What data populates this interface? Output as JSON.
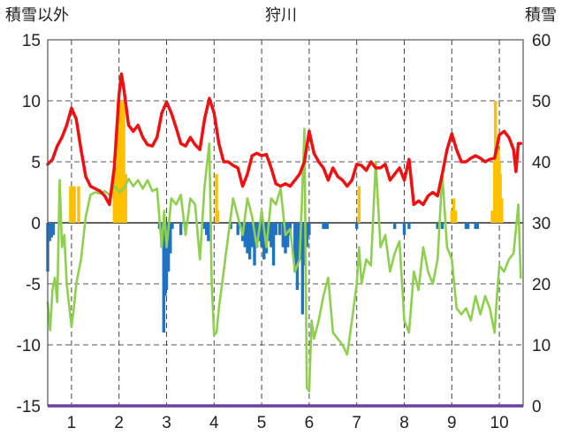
{
  "chart_data": {
    "type": "bar+line",
    "title": "狩川",
    "left_axis_label": "積雪以外",
    "right_axis_label": "積雪",
    "left_ylim": [
      -15,
      15
    ],
    "right_ylim": [
      0,
      60
    ],
    "left_ticks": [
      "15",
      "10",
      "5",
      "0",
      "-5",
      "-10",
      "-15"
    ],
    "right_ticks": [
      "60",
      "50",
      "40",
      "30",
      "20",
      "10",
      "0"
    ],
    "x_categories": [
      "1",
      "2",
      "3",
      "4",
      "5",
      "6",
      "7",
      "8",
      "9",
      "10"
    ],
    "grid": "dashed",
    "colors": {
      "red_line": "#ee1111",
      "green_line": "#8fcf4f",
      "orange_bars": "#ffc000",
      "blue_bars": "#1f73c0",
      "base_line": "#6e3fa0"
    },
    "series": [
      {
        "color_key": "red_line",
        "axis": "left",
        "points": [
          [
            0.5,
            4.8
          ],
          [
            0.6,
            5.2
          ],
          [
            0.7,
            6.3
          ],
          [
            0.8,
            7.0
          ],
          [
            0.9,
            8.0
          ],
          [
            1.0,
            9.4
          ],
          [
            1.1,
            8.5
          ],
          [
            1.2,
            6.0
          ],
          [
            1.3,
            3.8
          ],
          [
            1.4,
            3.0
          ],
          [
            1.5,
            2.8
          ],
          [
            1.6,
            2.6
          ],
          [
            1.7,
            2.2
          ],
          [
            1.8,
            1.5
          ],
          [
            1.9,
            4.5
          ],
          [
            2.0,
            10.5
          ],
          [
            2.05,
            12.2
          ],
          [
            2.1,
            11.0
          ],
          [
            2.2,
            8.0
          ],
          [
            2.3,
            7.5
          ],
          [
            2.4,
            8.0
          ],
          [
            2.5,
            7.0
          ],
          [
            2.6,
            6.4
          ],
          [
            2.7,
            6.3
          ],
          [
            2.8,
            7.0
          ],
          [
            2.9,
            9.0
          ],
          [
            3.0,
            9.9
          ],
          [
            3.1,
            9.0
          ],
          [
            3.2,
            7.8
          ],
          [
            3.3,
            6.5
          ],
          [
            3.4,
            6.3
          ],
          [
            3.5,
            7.0
          ],
          [
            3.6,
            6.4
          ],
          [
            3.7,
            6.0
          ],
          [
            3.8,
            8.5
          ],
          [
            3.9,
            10.2
          ],
          [
            4.0,
            9.0
          ],
          [
            4.1,
            6.5
          ],
          [
            4.2,
            5.0
          ],
          [
            4.3,
            5.0
          ],
          [
            4.4,
            4.7
          ],
          [
            4.5,
            4.5
          ],
          [
            4.6,
            3.0
          ],
          [
            4.7,
            4.0
          ],
          [
            4.8,
            5.5
          ],
          [
            4.9,
            5.7
          ],
          [
            5.0,
            5.5
          ],
          [
            5.1,
            5.6
          ],
          [
            5.2,
            4.5
          ],
          [
            5.3,
            3.2
          ],
          [
            5.4,
            3.0
          ],
          [
            5.5,
            3.2
          ],
          [
            5.6,
            3.0
          ],
          [
            5.7,
            3.5
          ],
          [
            5.8,
            4.0
          ],
          [
            5.9,
            5.0
          ],
          [
            6.0,
            7.5
          ],
          [
            6.1,
            5.7
          ],
          [
            6.2,
            5.0
          ],
          [
            6.3,
            4.5
          ],
          [
            6.4,
            3.5
          ],
          [
            6.5,
            4.5
          ],
          [
            6.6,
            3.8
          ],
          [
            6.7,
            3.5
          ],
          [
            6.8,
            3.0
          ],
          [
            6.9,
            3.5
          ],
          [
            7.0,
            4.8
          ],
          [
            7.1,
            4.7
          ],
          [
            7.2,
            4.3
          ],
          [
            7.3,
            5.0
          ],
          [
            7.4,
            4.5
          ],
          [
            7.5,
            4.5
          ],
          [
            7.6,
            4.8
          ],
          [
            7.7,
            3.5
          ],
          [
            7.8,
            4.0
          ],
          [
            7.9,
            4.5
          ],
          [
            8.0,
            3.5
          ],
          [
            8.1,
            5.2
          ],
          [
            8.2,
            1.5
          ],
          [
            8.3,
            1.8
          ],
          [
            8.4,
            1.5
          ],
          [
            8.5,
            2.2
          ],
          [
            8.6,
            2.5
          ],
          [
            8.7,
            2.2
          ],
          [
            8.8,
            4.0
          ],
          [
            8.9,
            6.0
          ],
          [
            9.0,
            7.3
          ],
          [
            9.1,
            6.0
          ],
          [
            9.2,
            5.0
          ],
          [
            9.3,
            5.0
          ],
          [
            9.4,
            5.3
          ],
          [
            9.5,
            5.5
          ],
          [
            9.6,
            5.3
          ],
          [
            9.7,
            5.0
          ],
          [
            9.8,
            5.2
          ],
          [
            9.9,
            5.3
          ],
          [
            10.0,
            7.2
          ],
          [
            10.1,
            7.5
          ],
          [
            10.2,
            7.0
          ],
          [
            10.3,
            6.0
          ],
          [
            10.35,
            4.2
          ],
          [
            10.4,
            6.5
          ],
          [
            10.45,
            6.5
          ]
        ]
      },
      {
        "color_key": "green_line",
        "axis": "left",
        "points": [
          [
            0.5,
            -6.5
          ],
          [
            0.55,
            -8.8
          ],
          [
            0.6,
            -5.5
          ],
          [
            0.65,
            -4.5
          ],
          [
            0.7,
            -6.5
          ],
          [
            0.75,
            3.5
          ],
          [
            0.8,
            -2.0
          ],
          [
            0.85,
            -1.0
          ],
          [
            0.9,
            -5.0
          ],
          [
            1.0,
            -8.5
          ],
          [
            1.05,
            -7.0
          ],
          [
            1.1,
            -5.0
          ],
          [
            1.2,
            -3.0
          ],
          [
            1.3,
            0.5
          ],
          [
            1.4,
            2.3
          ],
          [
            1.5,
            2.5
          ],
          [
            1.6,
            2.4
          ],
          [
            1.7,
            2.6
          ],
          [
            1.8,
            2.3
          ],
          [
            1.9,
            3.0
          ],
          [
            2.0,
            2.5
          ],
          [
            2.1,
            2.8
          ],
          [
            2.2,
            3.6
          ],
          [
            2.3,
            3.0
          ],
          [
            2.4,
            3.5
          ],
          [
            2.5,
            2.8
          ],
          [
            2.6,
            3.5
          ],
          [
            2.7,
            2.6
          ],
          [
            2.8,
            2.8
          ],
          [
            2.9,
            -2.0
          ],
          [
            2.95,
            1.0
          ],
          [
            3.0,
            -2.0
          ],
          [
            3.1,
            2.0
          ],
          [
            3.2,
            1.5
          ],
          [
            3.3,
            2.3
          ],
          [
            3.4,
            -1.0
          ],
          [
            3.5,
            2.0
          ],
          [
            3.6,
            1.5
          ],
          [
            3.7,
            -3.0
          ],
          [
            3.8,
            3.0
          ],
          [
            3.9,
            6.5
          ],
          [
            3.95,
            -5.0
          ],
          [
            4.0,
            -9.2
          ],
          [
            4.05,
            -9.0
          ],
          [
            4.1,
            -7.0
          ],
          [
            4.2,
            -4.0
          ],
          [
            4.3,
            -1.0
          ],
          [
            4.4,
            2.0
          ],
          [
            4.5,
            0.5
          ],
          [
            4.6,
            -1.0
          ],
          [
            4.7,
            2.0
          ],
          [
            4.8,
            0.5
          ],
          [
            4.9,
            -2.0
          ],
          [
            5.0,
            1.0
          ],
          [
            5.1,
            -2.0
          ],
          [
            5.2,
            2.0
          ],
          [
            5.3,
            1.5
          ],
          [
            5.4,
            2.8
          ],
          [
            5.5,
            -1.0
          ],
          [
            5.6,
            -0.5
          ],
          [
            5.7,
            -4.0
          ],
          [
            5.8,
            -3.0
          ],
          [
            5.85,
            2.0
          ],
          [
            5.9,
            7.7
          ],
          [
            5.95,
            -13.5
          ],
          [
            6.0,
            -13.8
          ],
          [
            6.05,
            -8.0
          ],
          [
            6.1,
            -9.5
          ],
          [
            6.2,
            -8.0
          ],
          [
            6.3,
            -6.0
          ],
          [
            6.4,
            -4.5
          ],
          [
            6.5,
            -9.0
          ],
          [
            6.6,
            -9.5
          ],
          [
            6.7,
            -10.0
          ],
          [
            6.8,
            -10.8
          ],
          [
            6.9,
            -8.0
          ],
          [
            7.0,
            -5.0
          ],
          [
            7.05,
            -2.0
          ],
          [
            7.1,
            -5.0
          ],
          [
            7.2,
            -3.0
          ],
          [
            7.3,
            -3.5
          ],
          [
            7.4,
            5.0
          ],
          [
            7.5,
            -2.0
          ],
          [
            7.6,
            -1.0
          ],
          [
            7.7,
            -4.0
          ],
          [
            7.8,
            -2.5
          ],
          [
            7.9,
            -1.5
          ],
          [
            8.0,
            -8.0
          ],
          [
            8.1,
            -9.0
          ],
          [
            8.2,
            -4.0
          ],
          [
            8.3,
            -5.5
          ],
          [
            8.4,
            -2.0
          ],
          [
            8.5,
            -4.0
          ],
          [
            8.6,
            -5.0
          ],
          [
            8.7,
            -3.0
          ],
          [
            8.8,
            4.0
          ],
          [
            8.9,
            -2.0
          ],
          [
            9.0,
            -3.0
          ],
          [
            9.1,
            -7.0
          ],
          [
            9.2,
            -7.5
          ],
          [
            9.3,
            -7.0
          ],
          [
            9.4,
            -8.0
          ],
          [
            9.5,
            -6.0
          ],
          [
            9.6,
            -7.5
          ],
          [
            9.7,
            -6.0
          ],
          [
            9.8,
            -7.0
          ],
          [
            9.9,
            -9.0
          ],
          [
            9.95,
            -6.0
          ],
          [
            10.0,
            -3.5
          ],
          [
            10.1,
            -4.0
          ],
          [
            10.2,
            -3.0
          ],
          [
            10.3,
            -2.5
          ],
          [
            10.4,
            1.5
          ],
          [
            10.45,
            -4.5
          ]
        ]
      },
      {
        "color_key": "orange_bars",
        "axis": "left",
        "type": "bar",
        "points": [
          [
            0.98,
            3.0
          ],
          [
            1.02,
            3.0
          ],
          [
            1.06,
            3.0
          ],
          [
            1.15,
            3.0
          ],
          [
            1.9,
            4.0
          ],
          [
            1.94,
            4.5
          ],
          [
            1.98,
            10.0
          ],
          [
            2.02,
            10.0
          ],
          [
            2.06,
            10.0
          ],
          [
            2.1,
            10.0
          ],
          [
            2.14,
            4.0
          ],
          [
            4.05,
            4.0
          ],
          [
            4.08,
            1.0
          ],
          [
            7.05,
            3.0
          ],
          [
            9.0,
            1.0
          ],
          [
            9.04,
            2.0
          ],
          [
            9.08,
            1.0
          ],
          [
            9.85,
            1.0
          ],
          [
            9.9,
            5.0
          ],
          [
            9.92,
            10.0
          ],
          [
            9.94,
            4.5
          ],
          [
            9.96,
            7.0
          ],
          [
            9.98,
            6.0
          ],
          [
            10.0,
            5.0
          ],
          [
            10.02,
            4.0
          ],
          [
            10.05,
            2.0
          ]
        ]
      },
      {
        "color_key": "blue_bars",
        "axis": "left",
        "type": "bar",
        "points": [
          [
            0.5,
            -4.0
          ],
          [
            0.54,
            -1.5
          ],
          [
            0.58,
            -1.2
          ],
          [
            0.62,
            -1.0
          ],
          [
            2.85,
            -0.5
          ],
          [
            2.9,
            -2.0
          ],
          [
            2.94,
            -9.0
          ],
          [
            2.97,
            -6.0
          ],
          [
            3.0,
            -5.5
          ],
          [
            3.04,
            -4.0
          ],
          [
            3.08,
            -2.5
          ],
          [
            3.12,
            -0.5
          ],
          [
            3.3,
            -1.0
          ],
          [
            3.4,
            -0.5
          ],
          [
            3.8,
            -0.5
          ],
          [
            3.84,
            -1.0
          ],
          [
            3.88,
            -1.5
          ],
          [
            3.92,
            -1.0
          ],
          [
            4.35,
            -0.5
          ],
          [
            4.5,
            -1.0
          ],
          [
            4.6,
            -1.5
          ],
          [
            4.65,
            -2.0
          ],
          [
            4.7,
            -2.5
          ],
          [
            4.75,
            -3.0
          ],
          [
            4.8,
            -2.0
          ],
          [
            4.85,
            -3.5
          ],
          [
            4.9,
            -2.0
          ],
          [
            4.95,
            -1.5
          ],
          [
            5.0,
            -2.0
          ],
          [
            5.05,
            -3.0
          ],
          [
            5.1,
            -2.5
          ],
          [
            5.15,
            -1.5
          ],
          [
            5.2,
            -2.0
          ],
          [
            5.25,
            -3.5
          ],
          [
            5.3,
            -1.0
          ],
          [
            5.38,
            -1.0
          ],
          [
            5.45,
            -2.0
          ],
          [
            5.5,
            -2.5
          ],
          [
            5.55,
            -2.0
          ],
          [
            5.6,
            -1.0
          ],
          [
            5.7,
            -4.0
          ],
          [
            5.75,
            -5.5
          ],
          [
            5.78,
            -3.0
          ],
          [
            5.82,
            -3.0
          ],
          [
            5.86,
            -7.5
          ],
          [
            5.9,
            -3.5
          ],
          [
            5.95,
            -2.0
          ],
          [
            6.0,
            -1.0
          ],
          [
            6.3,
            -0.5
          ],
          [
            6.34,
            -0.5
          ],
          [
            6.38,
            -0.5
          ],
          [
            7.0,
            -0.5
          ],
          [
            7.8,
            -0.5
          ],
          [
            8.0,
            -1.0
          ],
          [
            8.1,
            -0.5
          ],
          [
            8.7,
            -0.5
          ],
          [
            8.8,
            -0.5
          ],
          [
            9.3,
            -0.5
          ],
          [
            9.34,
            -0.5
          ],
          [
            9.5,
            -0.5
          ],
          [
            9.54,
            -0.5
          ]
        ]
      }
    ]
  }
}
